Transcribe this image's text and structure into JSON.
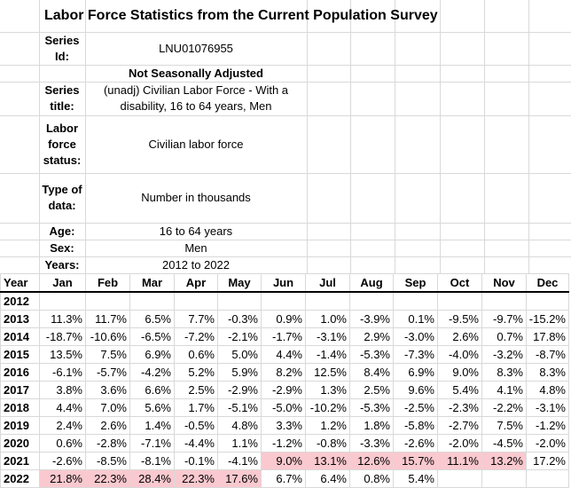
{
  "title": "Labor Force Statistics from the Current Population Survey",
  "meta": {
    "series_id_label": "Series Id:",
    "series_id": "LNU01076955",
    "adjustment": "Not Seasonally Adjusted",
    "series_title_label": "Series title:",
    "series_title": "(unadj) Civilian Labor Force - With a disability, 16 to 64 years, Men",
    "labor_force_status_label": "Labor force status:",
    "labor_force_status": "Civilian labor force",
    "type_of_data_label": "Type of data:",
    "type_of_data": "Number in thousands",
    "age_label": "Age:",
    "age": "16 to 64 years",
    "sex_label": "Sex:",
    "sex": "Men",
    "years_label": "Years:",
    "years": "2012 to 2022"
  },
  "table": {
    "headers": [
      "Year",
      "Jan",
      "Feb",
      "Mar",
      "Apr",
      "May",
      "Jun",
      "Jul",
      "Aug",
      "Sep",
      "Oct",
      "Nov",
      "Dec"
    ],
    "highlight_color": "#f9c9cf",
    "rows": [
      {
        "year": "2012",
        "values": [
          "",
          "",
          "",
          "",
          "",
          "",
          "",
          "",
          "",
          "",
          "",
          ""
        ],
        "highlight": []
      },
      {
        "year": "2013",
        "values": [
          "11.3%",
          "11.7%",
          "6.5%",
          "7.7%",
          "-0.3%",
          "0.9%",
          "1.0%",
          "-3.9%",
          "0.1%",
          "-9.5%",
          "-9.7%",
          "-15.2%"
        ],
        "highlight": []
      },
      {
        "year": "2014",
        "values": [
          "-18.7%",
          "-10.6%",
          "-6.5%",
          "-7.2%",
          "-2.1%",
          "-1.7%",
          "-3.1%",
          "2.9%",
          "-3.0%",
          "2.6%",
          "0.7%",
          "17.8%"
        ],
        "highlight": []
      },
      {
        "year": "2015",
        "values": [
          "13.5%",
          "7.5%",
          "6.9%",
          "0.6%",
          "5.0%",
          "4.4%",
          "-1.4%",
          "-5.3%",
          "-7.3%",
          "-4.0%",
          "-3.2%",
          "-8.7%"
        ],
        "highlight": []
      },
      {
        "year": "2016",
        "values": [
          "-6.1%",
          "-5.7%",
          "-4.2%",
          "5.2%",
          "5.9%",
          "8.2%",
          "12.5%",
          "8.4%",
          "6.9%",
          "9.0%",
          "8.3%",
          "8.3%"
        ],
        "highlight": []
      },
      {
        "year": "2017",
        "values": [
          "3.8%",
          "3.6%",
          "6.6%",
          "2.5%",
          "-2.9%",
          "-2.9%",
          "1.3%",
          "2.5%",
          "9.6%",
          "5.4%",
          "4.1%",
          "4.8%"
        ],
        "highlight": []
      },
      {
        "year": "2018",
        "values": [
          "4.4%",
          "7.0%",
          "5.6%",
          "1.7%",
          "-5.1%",
          "-5.0%",
          "-10.2%",
          "-5.3%",
          "-2.5%",
          "-2.3%",
          "-2.2%",
          "-3.1%"
        ],
        "highlight": []
      },
      {
        "year": "2019",
        "values": [
          "2.4%",
          "2.6%",
          "1.4%",
          "-0.5%",
          "4.8%",
          "3.3%",
          "1.2%",
          "1.8%",
          "-5.8%",
          "-2.7%",
          "7.5%",
          "-1.2%"
        ],
        "highlight": []
      },
      {
        "year": "2020",
        "values": [
          "0.6%",
          "-2.8%",
          "-7.1%",
          "-4.4%",
          "1.1%",
          "-1.2%",
          "-0.8%",
          "-3.3%",
          "-2.6%",
          "-2.0%",
          "-4.5%",
          "-2.0%"
        ],
        "highlight": []
      },
      {
        "year": "2021",
        "values": [
          "-2.6%",
          "-8.5%",
          "-8.1%",
          "-0.1%",
          "-4.1%",
          "9.0%",
          "13.1%",
          "12.6%",
          "15.7%",
          "11.1%",
          "13.2%",
          "17.2%"
        ],
        "highlight": [
          5,
          6,
          7,
          8,
          9,
          10
        ]
      },
      {
        "year": "2022",
        "values": [
          "21.8%",
          "22.3%",
          "28.4%",
          "22.3%",
          "17.6%",
          "6.7%",
          "6.4%",
          "0.8%",
          "5.4%",
          "",
          "",
          ""
        ],
        "highlight": [
          0,
          1,
          2,
          3,
          4
        ]
      }
    ]
  }
}
